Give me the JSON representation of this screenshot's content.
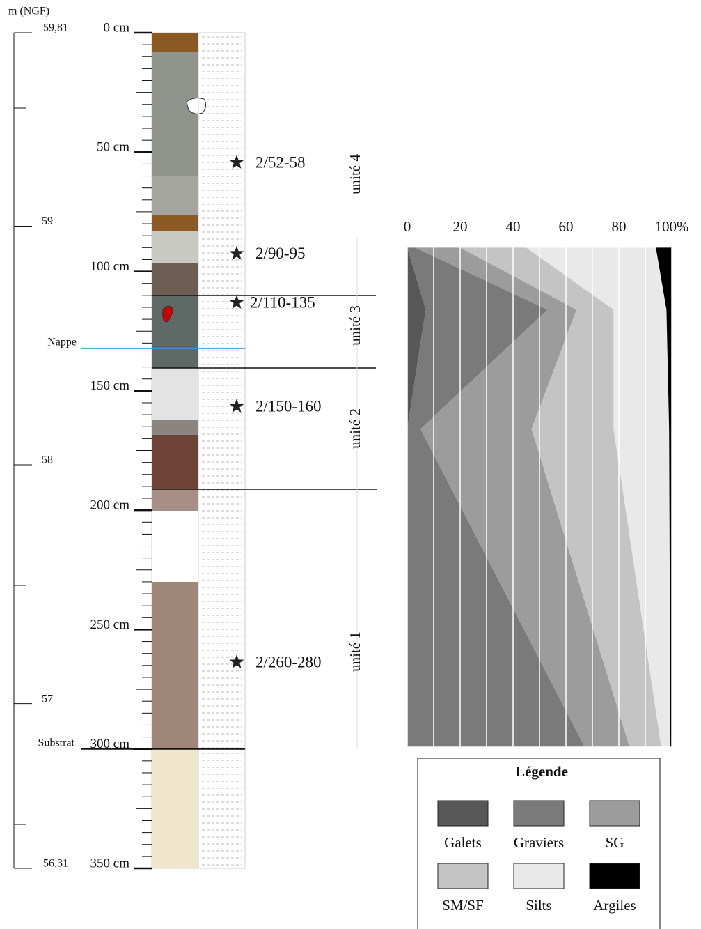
{
  "log": {
    "elevation_label": "m (NGF)",
    "elevation_lim": [
      59.81,
      56.31
    ],
    "elevation_ticks": [
      {
        "value": 59.81,
        "label": "59,81"
      },
      59,
      58,
      57,
      {
        "value": 56.31,
        "label": "56,31"
      }
    ],
    "depth_lim": [
      0,
      350
    ],
    "depth_ticks": [
      {
        "value": 0,
        "label": "0 cm"
      },
      {
        "value": 50,
        "label": "50 cm"
      },
      {
        "value": 100,
        "label": "100 cm"
      },
      {
        "value": 150,
        "label": "150 cm"
      },
      {
        "value": 200,
        "label": "200 cm"
      },
      {
        "value": 250,
        "label": "250 cm"
      },
      {
        "value": 300,
        "label": "300 cm"
      },
      {
        "value": 350,
        "label": "350 cm"
      }
    ],
    "markers": [
      {
        "label": "Nappe",
        "depth": 132.2
      },
      {
        "label": "Substrat",
        "depth": 300
      }
    ],
    "samples": [
      {
        "label": "2/52-58",
        "depth": 54.3
      },
      {
        "label": "2/90-95",
        "depth": 92.5
      },
      {
        "label": "2/110-135",
        "depth": 113
      },
      {
        "label": "2/150-160",
        "depth": 156.5
      },
      {
        "label": "2/260-280",
        "depth": 263.6
      }
    ],
    "units": [
      "unité 4",
      "unité 3",
      "unité 2",
      "unité 1"
    ]
  },
  "chart_data": {
    "type": "area",
    "stacked": true,
    "y": [
      90,
      116,
      166,
      299
    ],
    "ylim": [
      0,
      350
    ],
    "xlim": [
      0,
      100
    ],
    "xticks": [
      0,
      20,
      40,
      60,
      80,
      {
        "value": 100,
        "label": "100%"
      }
    ],
    "grid": true,
    "legend_title": "Légende",
    "series": [
      {
        "name": "Galets",
        "color": "#575757",
        "values": [
          0,
          7,
          0,
          0
        ]
      },
      {
        "name": "Graviers",
        "color": "#7a7a7a",
        "values": [
          3,
          46,
          5,
          67
        ]
      },
      {
        "name": "SG",
        "color": "#9c9c9c",
        "values": [
          17,
          11,
          42,
          17
        ]
      },
      {
        "name": "SM/SF",
        "color": "#c4c4c4",
        "values": [
          25,
          14,
          31,
          12
        ]
      },
      {
        "name": "Silts",
        "color": "#e9e9e9",
        "values": [
          49,
          20,
          21,
          3.5
        ]
      },
      {
        "name": "Argiles",
        "color": "#000000",
        "values": [
          6,
          2,
          1,
          0.5
        ]
      }
    ]
  }
}
